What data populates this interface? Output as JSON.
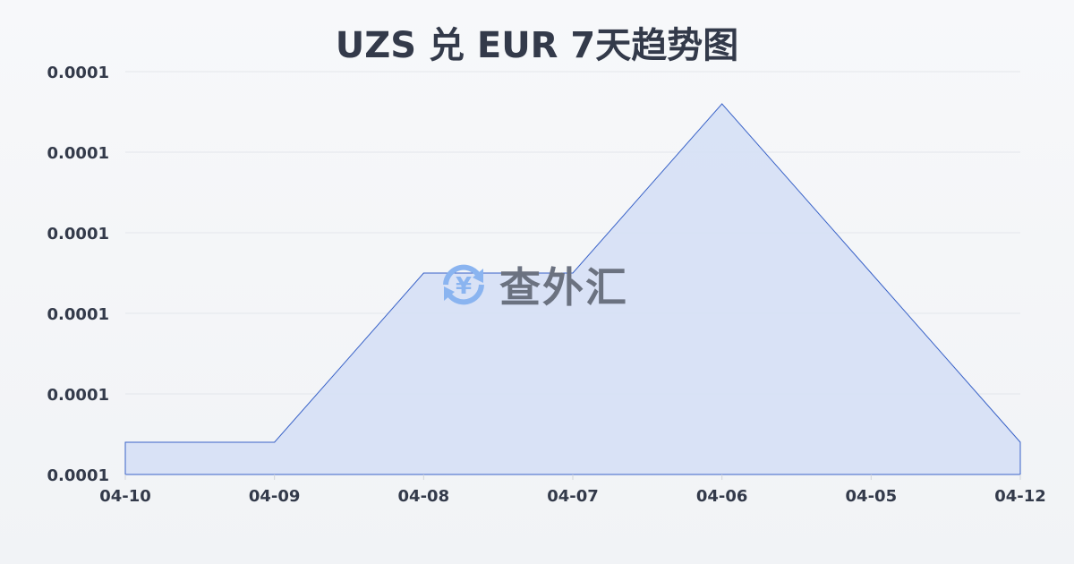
{
  "title": "UZS 兑 EUR 7天趋势图",
  "watermark": {
    "text": "查外汇",
    "icon": "yen-exchange-icon"
  },
  "chart_data": {
    "type": "area",
    "title": "UZS 兑 EUR 7天趋势图",
    "xlabel": "",
    "ylabel": "",
    "categories": [
      "04-10",
      "04-09",
      "04-08",
      "04-07",
      "04-06",
      "04-05",
      "04-12"
    ],
    "values": [
      7.684e-05,
      7.684e-05,
      7.705e-05,
      7.705e-05,
      7.726e-05,
      7.705e-05,
      7.684e-05
    ],
    "ylim": [
      7.68e-05,
      7.73e-05
    ],
    "yticks": [
      7.68e-05,
      7.69e-05,
      7.7e-05,
      7.71e-05,
      7.72e-05,
      7.73e-05
    ],
    "ytick_labels": [
      "0.0001",
      "0.0001",
      "0.0001",
      "0.0001",
      "0.0001",
      "0.0001"
    ],
    "grid": true,
    "colors": {
      "line": "#3a63c8",
      "fill": "#d6e0f5",
      "grid": "#e3e6eb",
      "text": "#333a4a"
    }
  }
}
